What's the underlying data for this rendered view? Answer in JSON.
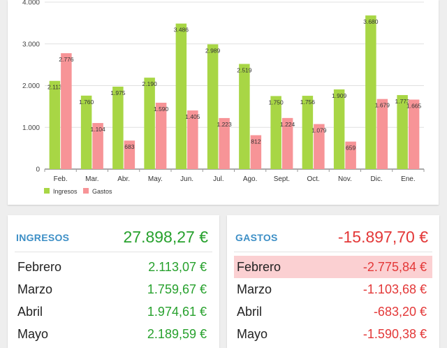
{
  "colors": {
    "ingresos": "#a8d645",
    "gastos": "#f79497",
    "income_text": "#27a12d",
    "expense_text": "#e33838",
    "header_text": "#3d8fc6"
  },
  "chart_data": {
    "type": "bar",
    "categories": [
      "Feb.",
      "Mar.",
      "Abr.",
      "May.",
      "Jun.",
      "Jul.",
      "Ago.",
      "Sept.",
      "Oct.",
      "Nov.",
      "Dic.",
      "Ene."
    ],
    "series": [
      {
        "name": "Ingresos",
        "values": [
          2113,
          1760,
          1975,
          2190,
          3486,
          2989,
          2519,
          1750,
          1756,
          1909,
          3680,
          1773
        ]
      },
      {
        "name": "Gastos",
        "values": [
          2776,
          1104,
          683,
          1590,
          1405,
          1223,
          812,
          1224,
          1079,
          659,
          1679,
          1665
        ]
      }
    ],
    "value_labels": {
      "Ingresos": [
        "2.113",
        "1.760",
        "1.975",
        "2.190",
        "3.486",
        "2.989",
        "2.519",
        "1.750",
        "1.756",
        "1.909",
        "3.680",
        "1.773"
      ],
      "Gastos": [
        "2.776",
        "1.104",
        "683",
        "1.590",
        "1.405",
        "1.223",
        "812",
        "1.224",
        "1.079",
        "659",
        "1.679",
        "1.665"
      ]
    },
    "y_ticks": [
      0,
      1000,
      2000,
      3000,
      4000
    ],
    "y_tick_labels": [
      "0",
      "1.000",
      "2.000",
      "3.000",
      "4.000"
    ],
    "ylim": [
      0,
      4000
    ],
    "grid": true,
    "legend_position": "bottom-left"
  },
  "income": {
    "title": "INGRESOS",
    "total": "27.898,27 €",
    "rows": [
      {
        "month": "Febrero",
        "value": "2.113,07 €"
      },
      {
        "month": "Marzo",
        "value": "1.759,67 €"
      },
      {
        "month": "Abril",
        "value": "1.974,61 €"
      },
      {
        "month": "Mayo",
        "value": "2.189,59 €"
      }
    ]
  },
  "expenses": {
    "title": "GASTOS",
    "total": "-15.897,70 €",
    "rows": [
      {
        "month": "Febrero",
        "value": "-2.775,84 €"
      },
      {
        "month": "Marzo",
        "value": "-1.103,68 €"
      },
      {
        "month": "Abril",
        "value": "-683,20 €"
      },
      {
        "month": "Mayo",
        "value": "-1.590,38 €"
      }
    ]
  }
}
